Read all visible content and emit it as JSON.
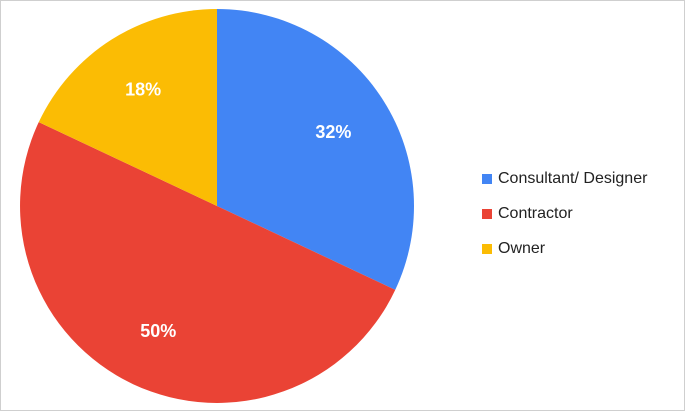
{
  "chart_data": {
    "type": "pie",
    "categories": [
      "Consultant/ Designer",
      "Contractor",
      "Owner"
    ],
    "values": [
      32,
      50,
      18
    ],
    "value_labels": [
      "32%",
      "50%",
      "18%"
    ],
    "colors": [
      "#4285f4",
      "#ea4335",
      "#fbbc04"
    ],
    "start": "12 o'clock",
    "direction": "clockwise",
    "legend_position": "right"
  }
}
